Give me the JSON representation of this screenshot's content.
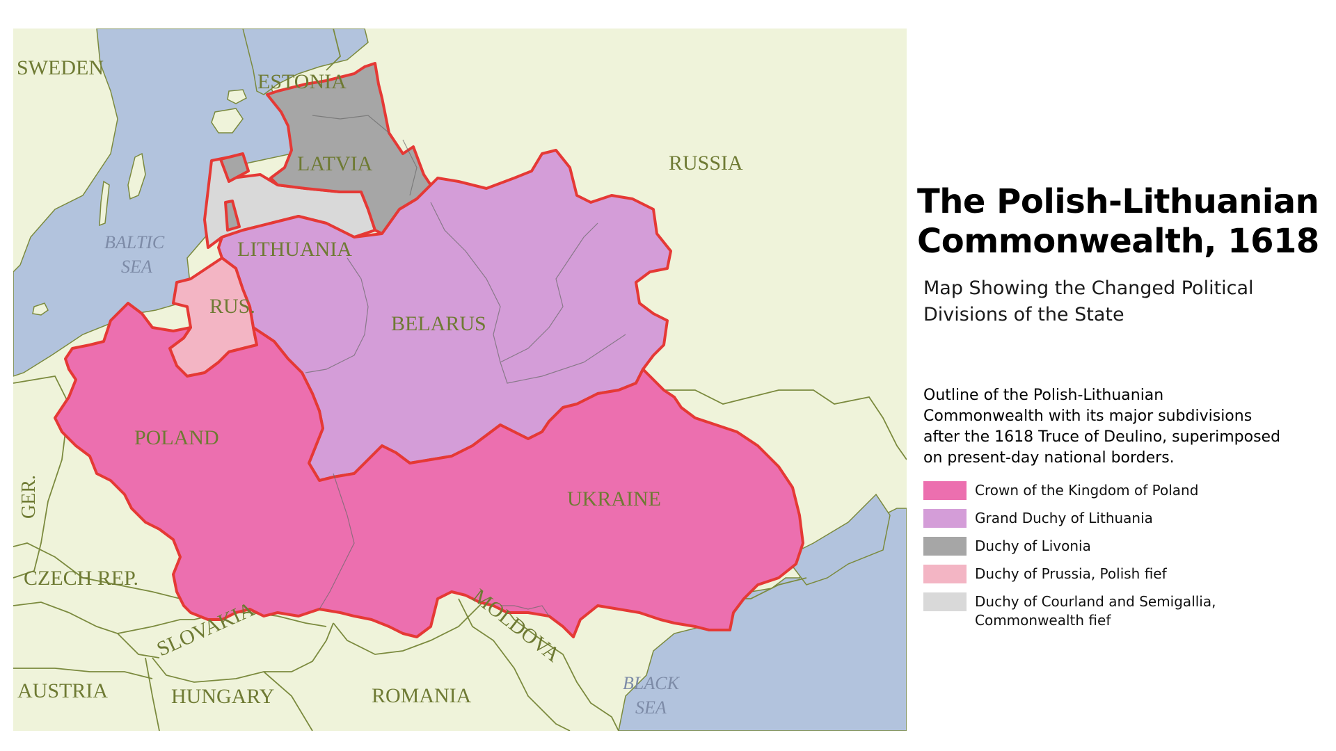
{
  "title": "The Polish-Lithuanian Commonwealth, 1618",
  "subtitle": "Map Showing the Changed Political Divisions of the State",
  "description": "Outline of the Polish-Lithuanian Commonwealth with its major subdivisions after the 1618 Truce of Deulino, superimposed on present-day national borders.",
  "map_labels": {
    "sweden": "SWEDEN",
    "estonia": "ESTONIA",
    "latvia": "LATVIA",
    "russia": "RUSSIA",
    "lithuania": "LITHUANIA",
    "rus": "RUS.",
    "belarus": "BELARUS",
    "poland": "POLAND",
    "ukraine": "UKRAINE",
    "germany": "GER.",
    "czech": "CZECH REP.",
    "slovakia": "SLOVAKIA",
    "moldova": "MOLDOVA",
    "austria": "AUSTRIA",
    "hungary": "HUNGARY",
    "romania": "ROMANIA",
    "baltic_line1": "BALTIC",
    "baltic_line2": "SEA",
    "black_line1": "BLACK",
    "black_line2": "SEA"
  },
  "legend": [
    {
      "label": "Crown of the Kingdom of Poland",
      "color": "#ec6faf"
    },
    {
      "label": "Grand Duchy of Lithuania",
      "color": "#d49dd8"
    },
    {
      "label": "Duchy of Livonia",
      "color": "#a6a6a6"
    },
    {
      "label": "Duchy of Prussia, Polish fief",
      "color": "#f3b5c4"
    },
    {
      "label": "Duchy of Courland and Semigallia, Commonwealth fief",
      "color": "#d9d9d9"
    }
  ],
  "colors": {
    "land": "#eff3da",
    "water": "#b2c3dd",
    "border": "#7b8a3e",
    "outline": "#e53935"
  }
}
